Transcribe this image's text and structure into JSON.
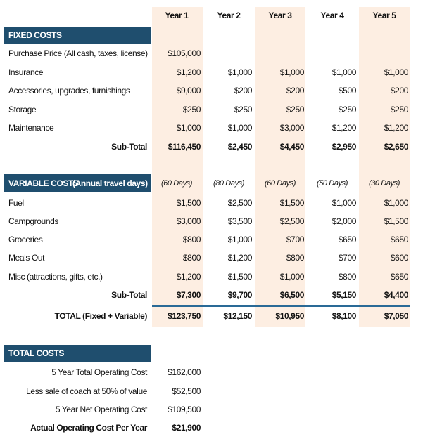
{
  "header": {
    "columns": [
      "Year 1",
      "Year 2",
      "Year 3",
      "Year 4",
      "Year 5"
    ]
  },
  "fixed_costs": {
    "title": "FIXED COSTS",
    "rows": [
      {
        "label": "Purchase Price (All cash, taxes, license)",
        "values": [
          "$105,000"
        ]
      },
      {
        "label": "Insurance",
        "values": [
          "$1,200",
          "$1,000",
          "$1,000",
          "$1,000",
          "$1,000"
        ]
      },
      {
        "label": "Accessories, upgrades, furnishings",
        "values": [
          "$9,000",
          "$200",
          "$200",
          "$500",
          "$200"
        ]
      },
      {
        "label": "Storage",
        "values": [
          "$250",
          "$250",
          "$250",
          "$250",
          "$250"
        ]
      },
      {
        "label": "Maintenance",
        "values": [
          "$1,000",
          "$1,000",
          "$3,000",
          "$1,200",
          "$1,200"
        ]
      }
    ],
    "subtotal": {
      "label": "Sub-Total",
      "values": [
        "$116,450",
        "$2,450",
        "$4,450",
        "$2,950",
        "$2,650"
      ]
    }
  },
  "variable_costs": {
    "title": "VARIABLE COSTS",
    "title_note": "(Annual travel days)",
    "days": [
      "(60 Days)",
      "(80 Days)",
      "(60 Days)",
      "(50 Days)",
      "(30 Days)"
    ],
    "rows": [
      {
        "label": "Fuel",
        "values": [
          "$1,500",
          "$2,500",
          "$1,500",
          "$1,000",
          "$1,000"
        ]
      },
      {
        "label": "Campgrounds",
        "values": [
          "$3,000",
          "$3,500",
          "$2,500",
          "$2,000",
          "$1,500"
        ]
      },
      {
        "label": "Groceries",
        "values": [
          "$800",
          "$1,000",
          "$700",
          "$650",
          "$650"
        ]
      },
      {
        "label": "Meals Out",
        "values": [
          "$800",
          "$1,200",
          "$800",
          "$700",
          "$600"
        ]
      },
      {
        "label": "Misc (attractions, gifts, etc.)",
        "values": [
          "$1,200",
          "$1,500",
          "$1,000",
          "$800",
          "$650"
        ]
      }
    ],
    "subtotal": {
      "label": "Sub-Total",
      "values": [
        "$7,300",
        "$9,700",
        "$6,500",
        "$5,150",
        "$4,400"
      ]
    }
  },
  "total": {
    "label": "TOTAL (Fixed + Variable)",
    "values": [
      "$123,750",
      "$12,150",
      "$10,950",
      "$8,100",
      "$7,050"
    ]
  },
  "total_costs": {
    "title": "TOTAL COSTS",
    "rows": [
      {
        "label": "5 Year Total Operating Cost",
        "value": "$162,000"
      },
      {
        "label": "Less sale of coach at 50% of value",
        "value": "$52,500"
      },
      {
        "label": "5 Year Net Operating Cost",
        "value": "$109,500"
      },
      {
        "label": "Actual Operating Cost Per Year",
        "value": "$21,900"
      }
    ]
  }
}
